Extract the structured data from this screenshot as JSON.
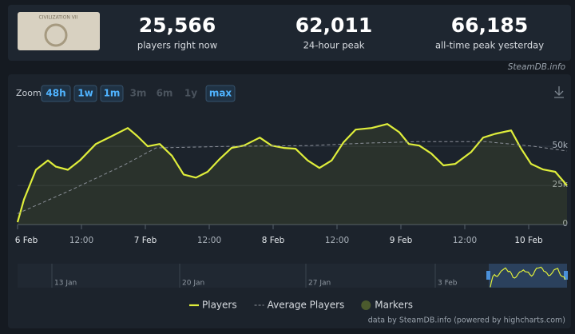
{
  "header": {
    "image_caption": "CIVILIZATION VII",
    "stats": [
      {
        "value": "25,566",
        "label": "players right now"
      },
      {
        "value": "62,011",
        "label": "24-hour peak"
      },
      {
        "value": "66,185",
        "label": "all-time peak yesterday"
      }
    ]
  },
  "source": "SteamDB.info",
  "zoom": {
    "label": "Zoom",
    "buttons": [
      {
        "label": "48h",
        "enabled": true
      },
      {
        "label": "1w",
        "enabled": true
      },
      {
        "label": "1m",
        "enabled": true
      },
      {
        "label": "3m",
        "enabled": false
      },
      {
        "label": "6m",
        "enabled": false
      },
      {
        "label": "1y",
        "enabled": false
      },
      {
        "label": "max",
        "enabled": true
      }
    ]
  },
  "chart_data": {
    "type": "line",
    "xlim": [
      0,
      103.2
    ],
    "xticks": [
      {
        "value": 0,
        "label": "6 Feb"
      },
      {
        "value": 12,
        "label": "12:00"
      },
      {
        "value": 24,
        "label": "7 Feb"
      },
      {
        "value": 36,
        "label": "12:00"
      },
      {
        "value": 48,
        "label": "8 Feb"
      },
      {
        "value": 60,
        "label": "12:00"
      },
      {
        "value": 72,
        "label": "9 Feb"
      },
      {
        "value": 84,
        "label": "12:00"
      },
      {
        "value": 96,
        "label": "10 Feb"
      }
    ],
    "ylim": [
      0,
      70000
    ],
    "yticks": [
      0,
      {
        "value": 25000,
        "label": "25k"
      },
      {
        "value": 50000,
        "label": "50k"
      }
    ],
    "grid": true,
    "series": [
      {
        "name": "Players",
        "color": "#dfee3b",
        "x": [
          0,
          1.2,
          3.45,
          5.7,
          7.2,
          9.45,
          11.7,
          14.7,
          17.7,
          20.7,
          22.5,
          24.45,
          26.7,
          29,
          31.2,
          33.5,
          35.7,
          38,
          40.2,
          42.5,
          45.5,
          47.7,
          50,
          52.2,
          54.5,
          56.7,
          59,
          61.2,
          63.5,
          66.5,
          69.45,
          71.7,
          73.5,
          75.45,
          77.7,
          80,
          82.2,
          85.2,
          87.45,
          89.7,
          92.7,
          94.5,
          96.45,
          98.7,
          101,
          103.2
        ],
        "values": [
          1500,
          16000,
          35000,
          41000,
          37000,
          35000,
          41000,
          51500,
          56500,
          61700,
          56500,
          50000,
          51500,
          44000,
          32000,
          30000,
          33700,
          42000,
          49000,
          50500,
          55600,
          50500,
          49000,
          48500,
          41000,
          36200,
          41000,
          52500,
          60700,
          61700,
          64300,
          59000,
          51500,
          50500,
          45400,
          37800,
          38800,
          46400,
          55600,
          58000,
          60200,
          49000,
          38800,
          35200,
          33700,
          25000
        ]
      },
      {
        "name": "Average Players",
        "color": "#8b9099",
        "dashed": true,
        "x": [
          0,
          10,
          20,
          26,
          40,
          55,
          65,
          75,
          88,
          97,
          103.2
        ],
        "values": [
          7000,
          22000,
          38000,
          49000,
          50000,
          50500,
          52000,
          53000,
          53000,
          50000,
          47000
        ]
      }
    ]
  },
  "navigator": {
    "labels": [
      "13 Jan",
      "20 Jan",
      "27 Jan",
      "3 Feb"
    ]
  },
  "legend_markers": "Markers",
  "footer": "data by SteamDB.info (powered by highcharts.com)"
}
